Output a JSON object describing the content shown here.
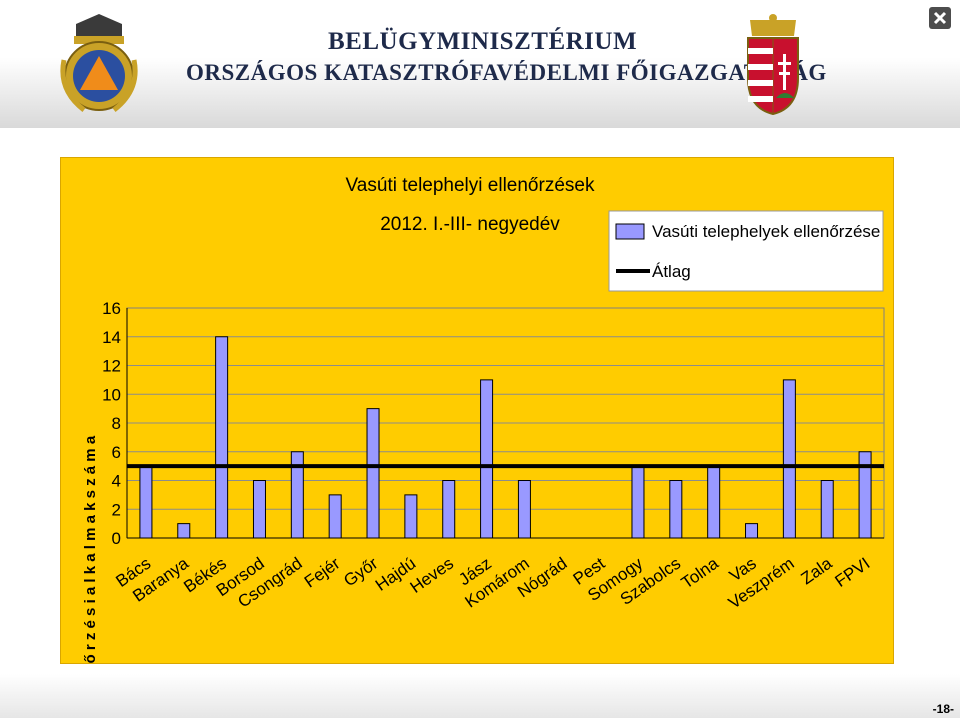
{
  "header": {
    "org_line1": "BELÜGYMINISZTÉRIUM",
    "org_line2": "ORSZÁGOS KATASZTRÓFAVÉDELMI FŐIGAZGATÓSÁG"
  },
  "footer": {
    "page_number": "-18-"
  },
  "colors": {
    "background": "#ffcc00",
    "bar_fill": "#9999ff",
    "bar_stroke": "#000000",
    "plot_bg": "#ffcc00",
    "average_line": "#000000"
  },
  "chart_data": {
    "type": "bar",
    "title": "Vasúti telephelyi ellenőrzések",
    "subtitle": "2012. I.-III- negyedév",
    "ylabel": "E l l e n ő r z é s i   a l k a l m a k   s z á m a",
    "xlabel": "",
    "ylim": [
      0,
      16
    ],
    "yticks": [
      "0",
      "2",
      "4",
      "6",
      "8",
      "10",
      "12",
      "14",
      "16"
    ],
    "categories": [
      "Bács",
      "Baranya",
      "Békés",
      "Borsod",
      "Csongrád",
      "Fejér",
      "Győr",
      "Hajdú",
      "Heves",
      "Jász",
      "Komárom",
      "Nógrád",
      "Pest",
      "Somogy",
      "Szabolcs",
      "Tolna",
      "Vas",
      "Veszprém",
      "Zala",
      "FPVI"
    ],
    "series": [
      {
        "name": "Vasúti telephelyek ellenőrzése",
        "values": [
          5,
          1,
          14,
          4,
          6,
          3,
          9,
          3,
          4,
          11,
          4,
          0,
          0,
          5,
          4,
          5,
          1,
          11,
          4,
          6
        ]
      }
    ],
    "average": {
      "name": "Átlag",
      "value": 5
    },
    "grid": true,
    "legend_position": "top-right"
  }
}
